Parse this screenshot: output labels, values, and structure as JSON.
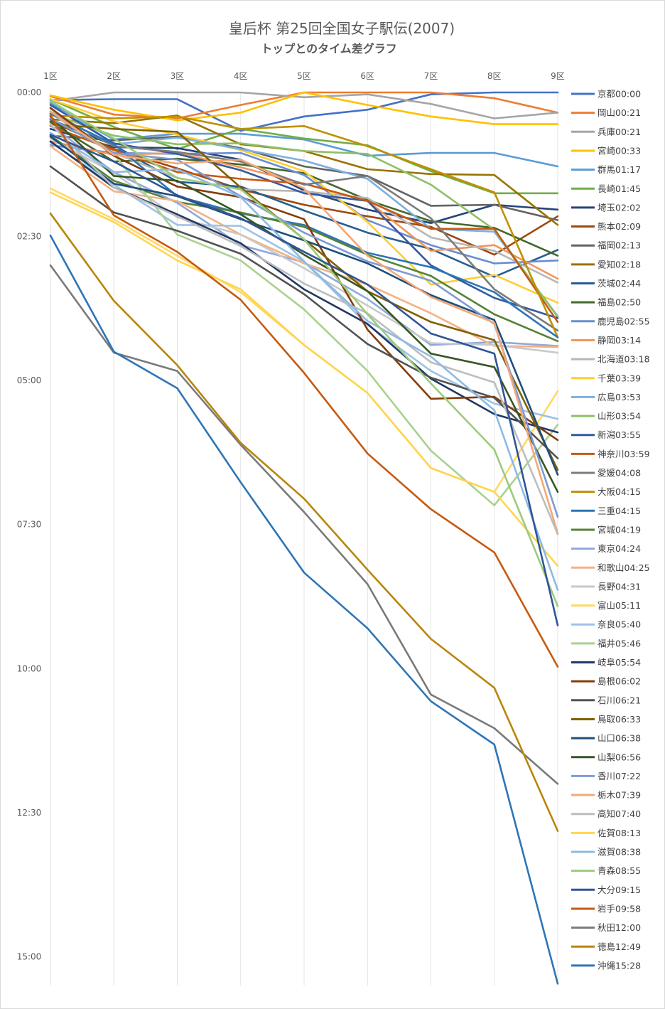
{
  "chart_data": {
    "type": "line",
    "title": "皇后杯 第25回全国女子駅伝(2007)",
    "subtitle": "トップとのタイム差グラフ",
    "categories": [
      "1区",
      "2区",
      "3区",
      "4区",
      "5区",
      "6区",
      "7区",
      "8区",
      "9区"
    ],
    "x_axis_position": "top",
    "y_axis_reversed": true,
    "ylim": [
      0,
      930
    ],
    "yticks": [
      {
        "value": 0,
        "label": "00:00"
      },
      {
        "value": 150,
        "label": "02:30"
      },
      {
        "value": 300,
        "label": "05:00"
      },
      {
        "value": 450,
        "label": "07:30"
      },
      {
        "value": 600,
        "label": "10:00"
      },
      {
        "value": 750,
        "label": "12:30"
      },
      {
        "value": 900,
        "label": "15:00"
      }
    ],
    "grid": "vertical-category",
    "legend_position": "right",
    "series": [
      {
        "name": "京都00:00",
        "color": "#4472C4",
        "values": [
          8,
          7,
          7,
          40,
          25,
          18,
          2,
          0,
          0
        ]
      },
      {
        "name": "岡山00:21",
        "color": "#ED7D31",
        "values": [
          4,
          23,
          27,
          13,
          0,
          0,
          0,
          6,
          21
        ]
      },
      {
        "name": "兵庫00:21",
        "color": "#A5A5A5",
        "values": [
          9,
          0,
          0,
          0,
          5,
          2,
          12,
          27,
          21
        ]
      },
      {
        "name": "宮崎00:33",
        "color": "#FFC000",
        "values": [
          3,
          18,
          29,
          21,
          0,
          13,
          25,
          33,
          33
        ]
      },
      {
        "name": "群馬01:17",
        "color": "#5B9BD5",
        "values": [
          11,
          49,
          43,
          43,
          49,
          66,
          63,
          63,
          77
        ]
      },
      {
        "name": "長崎01:45",
        "color": "#70AD47",
        "values": [
          7,
          36,
          59,
          38,
          48,
          55,
          82,
          105,
          105
        ]
      },
      {
        "name": "埼玉02:02",
        "color": "#264478",
        "values": [
          38,
          57,
          58,
          70,
          102,
          122,
          136,
          117,
          122
        ]
      },
      {
        "name": "熊本02:09",
        "color": "#9E480E",
        "values": [
          30,
          59,
          79,
          101,
          117,
          129,
          140,
          169,
          129
        ]
      },
      {
        "name": "福岡02:13",
        "color": "#636363",
        "values": [
          45,
          50,
          46,
          58,
          77,
          87,
          118,
          117,
          133
        ]
      },
      {
        "name": "愛知02:18",
        "color": "#997300",
        "values": [
          28,
          32,
          24,
          54,
          61,
          80,
          85,
          86,
          138
        ]
      },
      {
        "name": "茨城02:44",
        "color": "#255E91",
        "values": [
          28,
          55,
          93,
          98,
          123,
          146,
          163,
          192,
          164
        ]
      },
      {
        "name": "福島02:50",
        "color": "#43682B",
        "values": [
          31,
          72,
          69,
          75,
          84,
          112,
          134,
          141,
          170
        ]
      },
      {
        "name": "鹿児島02:55",
        "color": "#698ED0",
        "values": [
          55,
          63,
          64,
          63,
          86,
          133,
          159,
          178,
          175
        ]
      },
      {
        "name": "静岡03:14",
        "color": "#F1975A",
        "values": [
          51,
          65,
          63,
          78,
          95,
          113,
          165,
          159,
          194
        ]
      },
      {
        "name": "北海道03:18",
        "color": "#B7B7B7",
        "values": [
          22,
          63,
          89,
          101,
          103,
          110,
          151,
          165,
          198
        ]
      },
      {
        "name": "千葉03:39",
        "color": "#FFCD33",
        "values": [
          7,
          30,
          44,
          60,
          82,
          135,
          200,
          190,
          219
        ]
      },
      {
        "name": "広島03:53",
        "color": "#7CAFDD",
        "values": [
          8,
          54,
          47,
          59,
          71,
          90,
          142,
          145,
          233
        ]
      },
      {
        "name": "山形03:54",
        "color": "#8CC168",
        "values": [
          22,
          45,
          54,
          53,
          61,
          64,
          96,
          143,
          234
        ]
      },
      {
        "name": "新潟03:55",
        "color": "#335AA1",
        "values": [
          13,
          53,
          64,
          81,
          105,
          113,
          180,
          214,
          235
        ]
      },
      {
        "name": "神奈川03:59",
        "color": "#C55A11",
        "values": [
          35,
          60,
          83,
          90,
          95,
          113,
          142,
          142,
          239
        ]
      },
      {
        "name": "愛媛04:08",
        "color": "#7B7B7B",
        "values": [
          20,
          56,
          62,
          72,
          96,
          87,
          131,
          205,
          248
        ]
      },
      {
        "name": "大阪04:15",
        "color": "#BF9000",
        "values": [
          24,
          27,
          25,
          38,
          35,
          56,
          80,
          104,
          255
        ]
      },
      {
        "name": "三重04:15",
        "color": "#2E75B6",
        "values": [
          22,
          54,
          108,
          126,
          138,
          167,
          182,
          208,
          255
        ]
      },
      {
        "name": "宮城04:19",
        "color": "#548235",
        "values": [
          45,
          92,
          114,
          125,
          140,
          169,
          191,
          231,
          259
        ]
      },
      {
        "name": "東京04:24",
        "color": "#8FAADC",
        "values": [
          34,
          83,
          115,
          159,
          177,
          215,
          263,
          260,
          264
        ]
      },
      {
        "name": "和歌山04:25",
        "color": "#F4B183",
        "values": [
          56,
          103,
          113,
          148,
          178,
          200,
          230,
          264,
          265
        ]
      },
      {
        "name": "長野04:31",
        "color": "#C9C9C9",
        "values": [
          48,
          84,
          130,
          148,
          183,
          222,
          261,
          263,
          271
        ]
      },
      {
        "name": "富山05:11",
        "color": "#FFD966",
        "values": [
          100,
          132,
          170,
          208,
          263,
          313,
          391,
          416,
          311
        ]
      },
      {
        "name": "奈良05:40",
        "color": "#9DC3E6",
        "values": [
          52,
          96,
          138,
          139,
          176,
          242,
          290,
          324,
          340
        ]
      },
      {
        "name": "福井05:46",
        "color": "#A9D18E",
        "values": [
          17,
          64,
          148,
          175,
          226,
          290,
          373,
          430,
          346
        ]
      },
      {
        "name": "岐阜05:54",
        "color": "#203864",
        "values": [
          51,
          99,
          127,
          157,
          205,
          241,
          298,
          335,
          354
        ]
      },
      {
        "name": "島根06:02",
        "color": "#843C0C",
        "values": [
          16,
          66,
          98,
          109,
          132,
          247,
          319,
          317,
          362
        ]
      },
      {
        "name": "石川06:21",
        "color": "#525252",
        "values": [
          77,
          125,
          144,
          168,
          210,
          262,
          297,
          318,
          381
        ]
      },
      {
        "name": "鳥取06:33",
        "color": "#7F6000",
        "values": [
          33,
          38,
          41,
          99,
          153,
          207,
          239,
          258,
          393
        ]
      },
      {
        "name": "山口06:38",
        "color": "#1F4E79",
        "values": [
          46,
          95,
          108,
          132,
          154,
          178,
          211,
          237,
          398
        ]
      },
      {
        "name": "山梨06:56",
        "color": "#375623",
        "values": [
          25,
          87,
          92,
          127,
          169,
          207,
          272,
          286,
          416
        ]
      },
      {
        "name": "香川07:22",
        "color": "#7D9BD3",
        "values": [
          27,
          63,
          70,
          108,
          146,
          176,
          196,
          241,
          442
        ]
      },
      {
        "name": "栃木07:39",
        "color": "#F3A876",
        "values": [
          20,
          65,
          74,
          70,
          100,
          170,
          213,
          240,
          459
        ]
      },
      {
        "name": "高知07:40",
        "color": "#BDBDBD",
        "values": [
          33,
          99,
          129,
          160,
          199,
          230,
          281,
          302,
          460
        ]
      },
      {
        "name": "佐賀08:13",
        "color": "#FFD54F",
        "values": [
          104,
          135,
          175,
          205,
          263,
          313,
          391,
          416,
          493
        ]
      },
      {
        "name": "滋賀08:38",
        "color": "#8EBAE2",
        "values": [
          42,
          83,
          80,
          109,
          176,
          238,
          275,
          331,
          518
        ]
      },
      {
        "name": "青森08:55",
        "color": "#9BCB7B",
        "values": [
          9,
          48,
          89,
          101,
          153,
          231,
          303,
          372,
          535
        ]
      },
      {
        "name": "大分09:15",
        "color": "#2F5597",
        "values": [
          44,
          72,
          107,
          131,
          166,
          200,
          251,
          272,
          555
        ]
      },
      {
        "name": "岩手09:58",
        "color": "#C55A11",
        "values": [
          24,
          128,
          166,
          216,
          292,
          376,
          434,
          479,
          598
        ]
      },
      {
        "name": "秋田12:00",
        "color": "#7A7A7A",
        "values": [
          180,
          271,
          290,
          367,
          437,
          512,
          627,
          662,
          720
        ]
      },
      {
        "name": "徳島12:49",
        "color": "#B8860B",
        "values": [
          126,
          217,
          284,
          365,
          423,
          497,
          569,
          620,
          769
        ]
      },
      {
        "name": "沖縄15:28",
        "color": "#2E75B6",
        "values": [
          149,
          270,
          308,
          406,
          500,
          558,
          634,
          679,
          928
        ]
      }
    ]
  }
}
